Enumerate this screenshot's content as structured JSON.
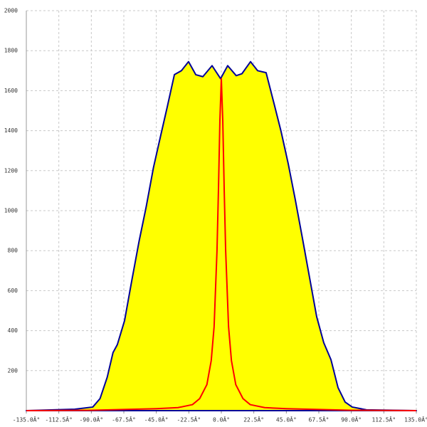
{
  "chart_data": {
    "type": "area",
    "xlim": [
      -135,
      135
    ],
    "ylim": [
      0,
      2000
    ],
    "xticks": [
      {
        "value": -135,
        "label": "-135.0Â°"
      },
      {
        "value": -112.5,
        "label": "-112.5Â°"
      },
      {
        "value": -90,
        "label": "-90.0Â°"
      },
      {
        "value": -67.5,
        "label": "-67.5Â°"
      },
      {
        "value": -45,
        "label": "-45.0Â°"
      },
      {
        "value": -22.5,
        "label": "-22.5Â°"
      },
      {
        "value": 0,
        "label": "0.0Â°"
      },
      {
        "value": 22.5,
        "label": "22.5Â°"
      },
      {
        "value": 45,
        "label": "45.0Â°"
      },
      {
        "value": 67.5,
        "label": "67.5Â°"
      },
      {
        "value": 90,
        "label": "90.0Â°"
      },
      {
        "value": 112.5,
        "label": "112.5Â°"
      },
      {
        "value": 135,
        "label": "135.0Â°"
      }
    ],
    "yticks": [
      200,
      400,
      600,
      800,
      1000,
      1200,
      1400,
      1600,
      1800,
      2000
    ],
    "grid": true,
    "series": [
      {
        "color": "#000099",
        "fill": "#ffff00",
        "x": [
          -135,
          -101.5,
          -89,
          -84,
          -79,
          -75,
          -72,
          -67,
          -62,
          -57,
          -52,
          -47,
          -42,
          -37.4,
          -32.5,
          -27.6,
          -22.7,
          -17.7,
          -12.8,
          -6.4,
          -0.5,
          4.4,
          10.3,
          14.3,
          20.2,
          25.1,
          31,
          36.5,
          41.4,
          46.3,
          51.2,
          56.2,
          61.1,
          66,
          70.9,
          75.9,
          80.8,
          85.7,
          90.6,
          100.5,
          135
        ],
        "values": [
          0,
          7,
          18,
          60,
          167,
          290,
          330,
          450,
          650,
          845,
          1020,
          1215,
          1375,
          1520,
          1680,
          1700,
          1745,
          1680,
          1670,
          1725,
          1660,
          1725,
          1675,
          1685,
          1745,
          1700,
          1690,
          1535,
          1395,
          1235,
          1055,
          860,
          665,
          470,
          340,
          255,
          115,
          43,
          18,
          4,
          0
        ]
      },
      {
        "color": "#ff0000",
        "x": [
          -135,
          -90,
          -45,
          -30,
          -20,
          -15,
          -10,
          -7,
          -5,
          -3,
          -2,
          -1,
          0,
          1,
          2,
          3,
          5,
          7,
          10,
          15,
          20,
          30,
          45,
          90,
          135
        ],
        "values": [
          0,
          2,
          10,
          15,
          30,
          60,
          130,
          250,
          420,
          800,
          1100,
          1450,
          1660,
          1450,
          1100,
          800,
          420,
          250,
          130,
          60,
          30,
          15,
          10,
          2,
          0
        ]
      }
    ]
  }
}
